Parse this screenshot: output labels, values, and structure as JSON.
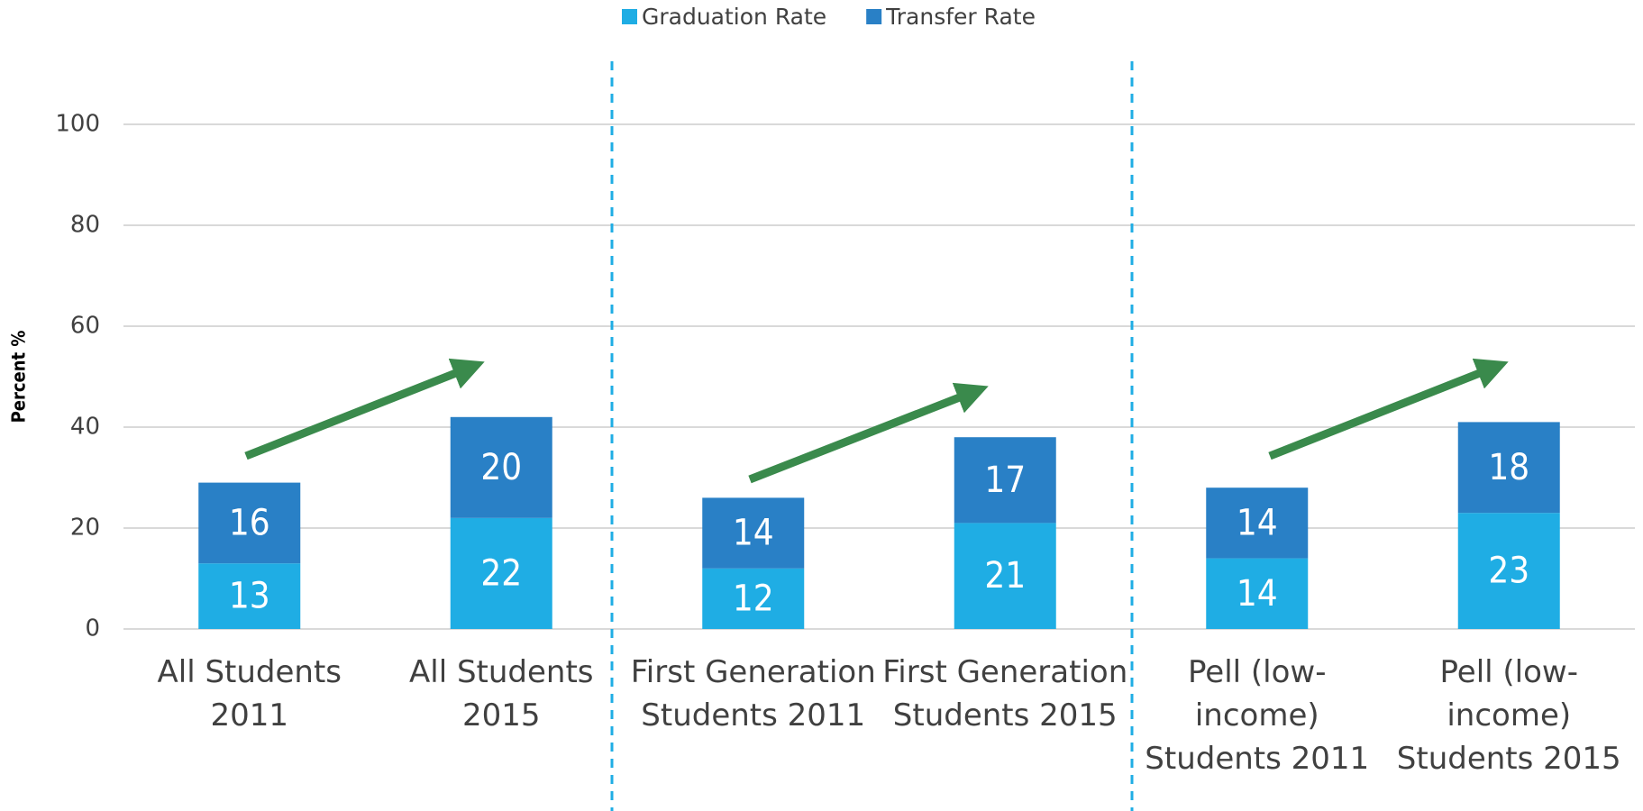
{
  "chart_data": {
    "type": "bar",
    "stacked": true,
    "categories": [
      "All Students 2011",
      "All Students 2015",
      "First Generation Students 2011",
      "First Generation Students 2015",
      "Pell (low-income) Students 2011",
      "Pell (low-income) Students 2015"
    ],
    "series": [
      {
        "name": "Graduation Rate",
        "color": "#1fade4",
        "values": [
          13,
          22,
          12,
          21,
          14,
          23
        ]
      },
      {
        "name": "Transfer Rate",
        "color": "#2980c6",
        "values": [
          16,
          20,
          14,
          17,
          14,
          18
        ]
      }
    ],
    "y_label": "Percent %",
    "ylim": [
      0,
      100
    ],
    "yticks": [
      0,
      20,
      40,
      60,
      80,
      100
    ],
    "grid": true,
    "legend": "top"
  }
}
